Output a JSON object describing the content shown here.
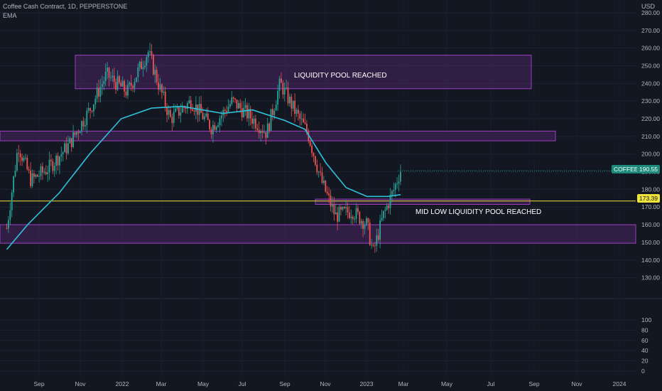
{
  "header": {
    "symbol_line": "Coffee Cash Contract, 1D, PEPPERSTONE",
    "indicator_line": "EMA"
  },
  "currency": "USD",
  "zones": {
    "upper_label": "LIQUIDITY POOL REACHED",
    "lower_label": "MID LOW LIQUIDITY POOL REACHED"
  },
  "price_tag": {
    "symbol": "COFFEE",
    "value": "190.55"
  },
  "line_tag": {
    "value": "173.39"
  },
  "colors": {
    "background": "#131722",
    "up": "#26a69a",
    "down": "#ef5350",
    "ema": "#2ec1d9",
    "zone_fill": "#6a2c86",
    "zone_border": "#9c3fbf",
    "hline": "#f0e33a",
    "axis_text": "#b2b5be"
  },
  "chart_data": {
    "type": "candlestick",
    "price_axis_ticks": [
      "280.00",
      "270.00",
      "260.00",
      "250.00",
      "240.00",
      "230.00",
      "220.00",
      "210.00",
      "200.00",
      "190.00",
      "180.00",
      "170.00",
      "160.00",
      "150.00",
      "140.00",
      "130.00"
    ],
    "volume_axis_ticks": [
      "100",
      "80",
      "60",
      "40",
      "20",
      "0"
    ],
    "x_ticks": [
      "Sep",
      "Nov",
      "2022",
      "Mar",
      "May",
      "Jul",
      "Sep",
      "Nov",
      "2023",
      "Mar",
      "May",
      "Jul",
      "Sep",
      "Nov",
      "2024"
    ],
    "ylim": [
      123,
      284
    ],
    "horizontal_line": 173.39,
    "last_price": 190.55,
    "zones": [
      {
        "name": "LIQUIDITY POOL REACHED",
        "low": 237,
        "high": 256,
        "from": "2021-10",
        "to": "2023-08"
      },
      {
        "name": "",
        "low": 207.5,
        "high": 213,
        "from": "2021-07",
        "to": "2023-10"
      },
      {
        "name": "",
        "low": 171.5,
        "high": 174.5,
        "from": "2022-10",
        "to": "2023-07"
      },
      {
        "name": "MID LOW LIQUIDITY POOL REACHED",
        "low": 149.5,
        "high": 160,
        "from": "2021-07",
        "to": "2024-03"
      }
    ],
    "price_path": [
      {
        "date": "2021-07-15",
        "close": 158
      },
      {
        "date": "2021-08-01",
        "close": 205
      },
      {
        "date": "2021-08-20",
        "close": 185
      },
      {
        "date": "2021-09-15",
        "close": 192
      },
      {
        "date": "2021-10-15",
        "close": 205
      },
      {
        "date": "2021-11-15",
        "close": 225
      },
      {
        "date": "2021-12-10",
        "close": 245
      },
      {
        "date": "2022-01-10",
        "close": 235
      },
      {
        "date": "2022-02-10",
        "close": 258
      },
      {
        "date": "2022-02-25",
        "close": 240
      },
      {
        "date": "2022-03-15",
        "close": 220
      },
      {
        "date": "2022-04-15",
        "close": 230
      },
      {
        "date": "2022-05-15",
        "close": 215
      },
      {
        "date": "2022-06-15",
        "close": 230
      },
      {
        "date": "2022-07-15",
        "close": 220
      },
      {
        "date": "2022-08-05",
        "close": 212
      },
      {
        "date": "2022-08-25",
        "close": 240
      },
      {
        "date": "2022-09-15",
        "close": 225
      },
      {
        "date": "2022-10-05",
        "close": 212
      },
      {
        "date": "2022-10-25",
        "close": 185
      },
      {
        "date": "2022-11-15",
        "close": 165
      },
      {
        "date": "2022-12-10",
        "close": 168
      },
      {
        "date": "2023-01-01",
        "close": 160
      },
      {
        "date": "2023-01-10",
        "close": 144
      },
      {
        "date": "2023-01-25",
        "close": 165
      },
      {
        "date": "2023-02-10",
        "close": 180
      },
      {
        "date": "2023-02-20",
        "close": 191
      }
    ],
    "ema_path": [
      {
        "date": "2021-07-15",
        "value": 146
      },
      {
        "date": "2021-08-15",
        "value": 160
      },
      {
        "date": "2021-10-01",
        "value": 178
      },
      {
        "date": "2021-11-15",
        "value": 200
      },
      {
        "date": "2022-01-01",
        "value": 220
      },
      {
        "date": "2022-02-15",
        "value": 226
      },
      {
        "date": "2022-04-01",
        "value": 227
      },
      {
        "date": "2022-06-01",
        "value": 223
      },
      {
        "date": "2022-07-15",
        "value": 225
      },
      {
        "date": "2022-09-01",
        "value": 219
      },
      {
        "date": "2022-10-01",
        "value": 214
      },
      {
        "date": "2022-11-01",
        "value": 195
      },
      {
        "date": "2022-12-01",
        "value": 181
      },
      {
        "date": "2023-01-01",
        "value": 176
      },
      {
        "date": "2023-02-01",
        "value": 176
      },
      {
        "date": "2023-02-20",
        "value": 177
      }
    ]
  }
}
